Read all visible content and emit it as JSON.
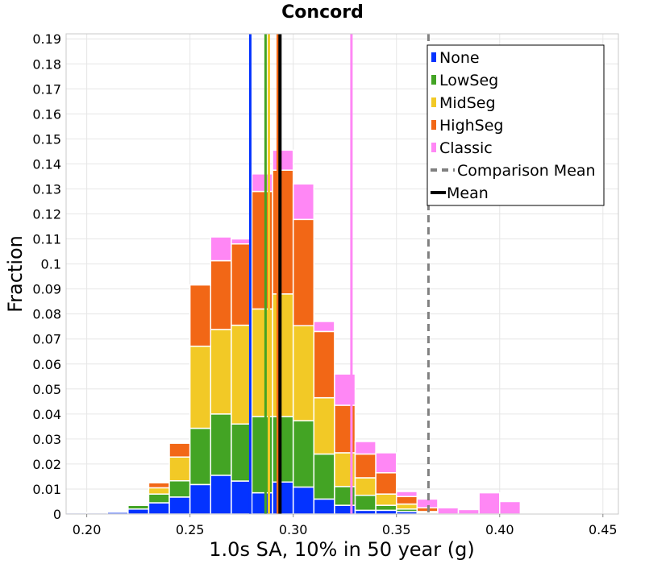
{
  "chart_data": {
    "type": "bar",
    "stacked": true,
    "title": "Concord",
    "xlabel": "1.0s SA, 10% in 50 year (g)",
    "ylabel": "Fraction",
    "xlim": [
      0.19,
      0.4575
    ],
    "ylim": [
      0,
      0.192
    ],
    "xticks": [
      "0.20",
      "0.25",
      "0.30",
      "0.35",
      "0.40",
      "0.45"
    ],
    "yticks": [
      "0",
      "0.01",
      "0.02",
      "0.03",
      "0.04",
      "0.05",
      "0.06",
      "0.07",
      "0.08",
      "0.09",
      "0.1",
      "0.11",
      "0.12",
      "0.13",
      "0.14",
      "0.15",
      "0.16",
      "0.17",
      "0.18",
      "0.19"
    ],
    "bin_width": 0.01,
    "bin_starts": [
      0.19,
      0.2,
      0.21,
      0.22,
      0.23,
      0.24,
      0.25,
      0.26,
      0.27,
      0.28,
      0.29,
      0.3,
      0.31,
      0.32,
      0.33,
      0.34,
      0.35,
      0.36,
      0.37,
      0.38,
      0.39,
      0.4
    ],
    "series": [
      {
        "name": "None",
        "color": "#0433ff",
        "values": [
          0.0005,
          0.0005,
          0.0007,
          0.002,
          0.0045,
          0.0068,
          0.0118,
          0.0155,
          0.0132,
          0.0085,
          0.0128,
          0.0108,
          0.006,
          0.0035,
          0.0015,
          0.0015,
          0.001,
          0,
          0,
          0,
          0,
          0
        ]
      },
      {
        "name": "LowSeg",
        "color": "#43a424",
        "values": [
          0,
          0,
          0,
          0.0015,
          0.0035,
          0.0065,
          0.0225,
          0.0245,
          0.0228,
          0.0305,
          0.0262,
          0.0265,
          0.018,
          0.0075,
          0.006,
          0.002,
          0.001,
          0.0005,
          0,
          0,
          0,
          0
        ]
      },
      {
        "name": "MidSeg",
        "color": "#f2c926",
        "values": [
          0,
          0,
          0,
          0.0005,
          0.0025,
          0.0095,
          0.0328,
          0.0338,
          0.0395,
          0.043,
          0.049,
          0.038,
          0.0225,
          0.0135,
          0.007,
          0.0045,
          0.002,
          0.0005,
          0,
          0,
          0,
          0
        ]
      },
      {
        "name": "HighSeg",
        "color": "#f26716",
        "values": [
          0,
          0,
          0,
          0,
          0.002,
          0.0055,
          0.0245,
          0.0275,
          0.0325,
          0.047,
          0.0495,
          0.0425,
          0.0265,
          0.019,
          0.0095,
          0.0085,
          0.003,
          0.0015,
          0,
          0,
          0,
          0
        ]
      },
      {
        "name": "Classic",
        "color": "#ff87f5",
        "values": [
          0,
          0,
          0,
          0,
          0,
          0,
          0,
          0.0095,
          0.002,
          0.007,
          0.008,
          0.0142,
          0.004,
          0.0125,
          0.005,
          0.008,
          0.002,
          0.0035,
          0.0025,
          0.0018,
          0.0085,
          0.005
        ]
      }
    ],
    "lines": [
      {
        "name": "None",
        "x": 0.2792,
        "color": "#0433ff",
        "style": "solid"
      },
      {
        "name": "LowSeg",
        "x": 0.2866,
        "color": "#43a424",
        "style": "solid"
      },
      {
        "name": "MidSeg",
        "x": 0.2882,
        "color": "#f2c926",
        "style": "solid"
      },
      {
        "name": "HighSeg",
        "x": 0.2925,
        "color": "#f26716",
        "style": "solid"
      },
      {
        "name": "Classic",
        "x": 0.3282,
        "color": "#ff87f5",
        "style": "solid"
      },
      {
        "name": "Comparison Mean",
        "x": 0.3655,
        "color": "#808080",
        "style": "dashed"
      },
      {
        "name": "Mean",
        "x": 0.2936,
        "color": "#000000",
        "style": "solid"
      }
    ],
    "legend": {
      "position": "top-right",
      "entries": [
        {
          "label": "None",
          "color": "#0433ff",
          "marker": "square"
        },
        {
          "label": "LowSeg",
          "color": "#43a424",
          "marker": "square"
        },
        {
          "label": "MidSeg",
          "color": "#f2c926",
          "marker": "square"
        },
        {
          "label": "HighSeg",
          "color": "#f26716",
          "marker": "square"
        },
        {
          "label": "Classic",
          "color": "#ff87f5",
          "marker": "square"
        },
        {
          "label": "Comparison Mean",
          "color": "#808080",
          "marker": "dashed-line"
        },
        {
          "label": "Mean",
          "color": "#000000",
          "marker": "line"
        }
      ]
    },
    "grid": true
  }
}
